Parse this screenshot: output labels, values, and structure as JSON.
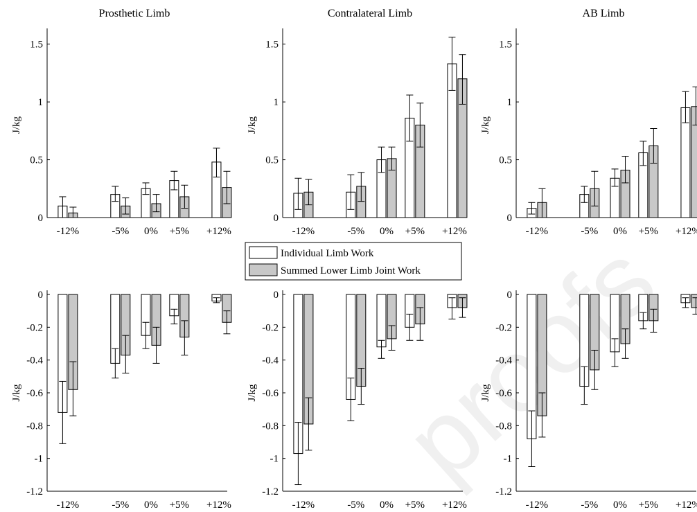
{
  "watermark": "proofs",
  "legend": {
    "entries": [
      {
        "label": "Individual Limb Work",
        "color": "#ffffff"
      },
      {
        "label": "Summed Lower Limb Joint Work",
        "color": "#c8c8c8"
      }
    ]
  },
  "chart_data": [
    {
      "type": "bar",
      "title": "Prosthetic Limb",
      "ylabel": "J/kg",
      "categories": [
        "-12%",
        "-5%",
        "0%",
        "+5%",
        "+12%"
      ],
      "ylim": [
        0,
        1.6
      ],
      "yticks": [
        0,
        0.5,
        1,
        1.5
      ],
      "ytick_labels": [
        "0",
        "0.5",
        "1",
        "1.5"
      ],
      "series": [
        {
          "name": "Individual Limb Work",
          "color": "#ffffff",
          "values": [
            0.1,
            0.2,
            0.25,
            0.32,
            0.48
          ],
          "err_low": [
            0.0,
            0.14,
            0.2,
            0.24,
            0.35
          ],
          "err_high": [
            0.18,
            0.27,
            0.3,
            0.4,
            0.6
          ]
        },
        {
          "name": "Summed Lower Limb Joint Work",
          "color": "#c8c8c8",
          "values": [
            0.04,
            0.1,
            0.12,
            0.18,
            0.26
          ],
          "err_low": [
            0.0,
            0.03,
            0.05,
            0.08,
            0.12
          ],
          "err_high": [
            0.09,
            0.17,
            0.2,
            0.28,
            0.4
          ]
        }
      ]
    },
    {
      "type": "bar",
      "title": "Contralateral Limb",
      "ylabel": "J/kg",
      "categories": [
        "-12%",
        "-5%",
        "0%",
        "+5%",
        "+12%"
      ],
      "ylim": [
        0,
        1.6
      ],
      "yticks": [
        0,
        0.5,
        1,
        1.5
      ],
      "ytick_labels": [
        "0",
        "0.5",
        "1",
        "1.5"
      ],
      "series": [
        {
          "name": "Individual Limb Work",
          "color": "#ffffff",
          "values": [
            0.21,
            0.22,
            0.5,
            0.86,
            1.33
          ],
          "err_low": [
            0.07,
            0.07,
            0.39,
            0.66,
            1.1
          ],
          "err_high": [
            0.34,
            0.37,
            0.61,
            1.06,
            1.56
          ]
        },
        {
          "name": "Summed Lower Limb Joint Work",
          "color": "#c8c8c8",
          "values": [
            0.22,
            0.27,
            0.51,
            0.8,
            1.2
          ],
          "err_low": [
            0.11,
            0.14,
            0.41,
            0.61,
            0.98
          ],
          "err_high": [
            0.33,
            0.39,
            0.61,
            0.99,
            1.41
          ]
        }
      ]
    },
    {
      "type": "bar",
      "title": "AB Limb",
      "ylabel": "J/kg",
      "categories": [
        "-12%",
        "-5%",
        "0%",
        "+5%",
        "+12%"
      ],
      "ylim": [
        0,
        1.6
      ],
      "yticks": [
        0,
        0.5,
        1,
        1.5
      ],
      "ytick_labels": [
        "0",
        "0.5",
        "1",
        "1.5"
      ],
      "series": [
        {
          "name": "Individual Limb Work",
          "color": "#ffffff",
          "values": [
            0.08,
            0.2,
            0.34,
            0.56,
            0.95
          ],
          "err_low": [
            0.03,
            0.13,
            0.27,
            0.45,
            0.82
          ],
          "err_high": [
            0.13,
            0.27,
            0.42,
            0.66,
            1.09
          ]
        },
        {
          "name": "Summed Lower Limb Joint Work",
          "color": "#c8c8c8",
          "values": [
            0.13,
            0.25,
            0.41,
            0.62,
            0.96
          ],
          "err_low": [
            0.0,
            0.1,
            0.3,
            0.47,
            0.8
          ],
          "err_high": [
            0.25,
            0.4,
            0.53,
            0.77,
            1.13
          ]
        }
      ]
    },
    {
      "type": "bar",
      "title": "",
      "ylabel": "J/kg",
      "categories": [
        "-12%",
        "-5%",
        "0%",
        "+5%",
        "+12%"
      ],
      "ylim": [
        -1.2,
        0
      ],
      "yticks": [
        -1.2,
        -1,
        -0.8,
        -0.6,
        -0.4,
        -0.2,
        0
      ],
      "ytick_labels": [
        "-1.2",
        "-1",
        "-0.8",
        "-0.6",
        "-0.4",
        "-0.2",
        "0"
      ],
      "series": [
        {
          "name": "Individual Limb Work",
          "color": "#ffffff",
          "values": [
            -0.72,
            -0.42,
            -0.25,
            -0.13,
            -0.04
          ],
          "err_low": [
            -0.91,
            -0.51,
            -0.33,
            -0.18,
            -0.05
          ],
          "err_high": [
            -0.53,
            -0.33,
            -0.17,
            -0.09,
            -0.02
          ]
        },
        {
          "name": "Summed Lower Limb Joint Work",
          "color": "#c8c8c8",
          "values": [
            -0.58,
            -0.37,
            -0.31,
            -0.26,
            -0.17
          ],
          "err_low": [
            -0.74,
            -0.48,
            -0.42,
            -0.37,
            -0.24
          ],
          "err_high": [
            -0.41,
            -0.25,
            -0.2,
            -0.16,
            -0.1
          ]
        }
      ]
    },
    {
      "type": "bar",
      "title": "",
      "ylabel": "J/kg",
      "categories": [
        "-12%",
        "-5%",
        "0%",
        "+5%",
        "+12%"
      ],
      "ylim": [
        -1.2,
        0
      ],
      "yticks": [
        -1.2,
        -1,
        -0.8,
        -0.6,
        -0.4,
        -0.2,
        0
      ],
      "ytick_labels": [
        "-1.2",
        "-1",
        "-0.8",
        "-0.6",
        "-0.4",
        "-0.2",
        "0"
      ],
      "series": [
        {
          "name": "Individual Limb Work",
          "color": "#ffffff",
          "values": [
            -0.97,
            -0.64,
            -0.32,
            -0.2,
            -0.08
          ],
          "err_low": [
            -1.16,
            -0.77,
            -0.39,
            -0.28,
            -0.15
          ],
          "err_high": [
            -0.78,
            -0.51,
            -0.28,
            -0.12,
            -0.02
          ]
        },
        {
          "name": "Summed Lower Limb Joint Work",
          "color": "#c8c8c8",
          "values": [
            -0.79,
            -0.56,
            -0.27,
            -0.18,
            -0.08
          ],
          "err_low": [
            -0.95,
            -0.67,
            -0.34,
            -0.28,
            -0.14
          ],
          "err_high": [
            -0.63,
            -0.45,
            -0.19,
            -0.08,
            -0.02
          ]
        }
      ]
    },
    {
      "type": "bar",
      "title": "",
      "ylabel": "J/kg",
      "categories": [
        "-12%",
        "-5%",
        "0%",
        "+5%",
        "+12%"
      ],
      "ylim": [
        -1.2,
        0
      ],
      "yticks": [
        -1.2,
        -1,
        -0.8,
        -0.6,
        -0.4,
        -0.2,
        0
      ],
      "ytick_labels": [
        "-1.2",
        "-1",
        "-0.8",
        "-0.6",
        "-0.4",
        "-0.2",
        "0"
      ],
      "series": [
        {
          "name": "Individual Limb Work",
          "color": "#ffffff",
          "values": [
            -0.88,
            -0.56,
            -0.35,
            -0.16,
            -0.05
          ],
          "err_low": [
            -1.05,
            -0.67,
            -0.44,
            -0.21,
            -0.08
          ],
          "err_high": [
            -0.71,
            -0.44,
            -0.27,
            -0.11,
            -0.02
          ]
        },
        {
          "name": "Summed Lower Limb Joint Work",
          "color": "#c8c8c8",
          "values": [
            -0.74,
            -0.46,
            -0.3,
            -0.16,
            -0.08
          ],
          "err_low": [
            -0.87,
            -0.58,
            -0.39,
            -0.23,
            -0.12
          ],
          "err_high": [
            -0.6,
            -0.34,
            -0.21,
            -0.09,
            -0.02
          ]
        }
      ]
    }
  ]
}
